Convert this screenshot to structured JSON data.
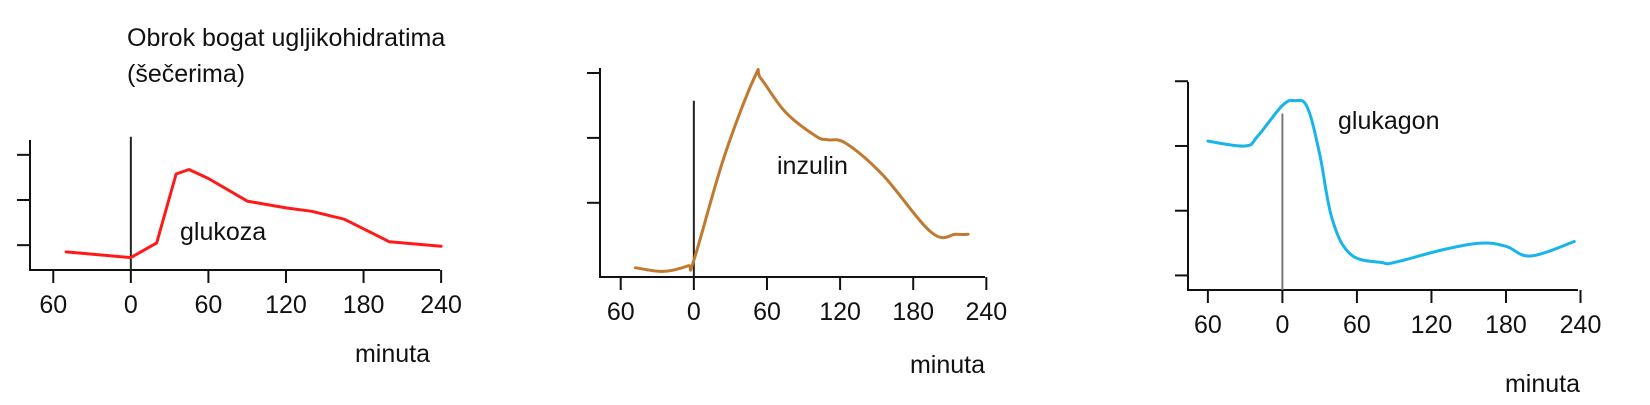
{
  "annotation": {
    "line1": "Obrok bogat ugljikohidratima",
    "line2": "(šečerima)"
  },
  "chart_data": [
    {
      "type": "line",
      "series": [
        {
          "name": "glukoza",
          "color": "#ff1a1a",
          "x": [
            -50,
            0,
            20,
            35,
            45,
            60,
            90,
            120,
            140,
            165,
            200,
            240
          ],
          "y": [
            1.4,
            0.9,
            2.2,
            8.3,
            8.7,
            7.9,
            5.9,
            5.3,
            5.0,
            4.3,
            2.3,
            1.9
          ]
        }
      ],
      "x_ticks": [
        {
          "value": -60,
          "label": "60"
        },
        {
          "value": 0,
          "label": "0"
        },
        {
          "value": 60,
          "label": "60"
        },
        {
          "value": 120,
          "label": "120"
        },
        {
          "value": 180,
          "label": "180"
        },
        {
          "value": 240,
          "label": "240"
        }
      ],
      "xlabel": "minuta",
      "xlim": [
        -78,
        243
      ],
      "ylim": [
        -0.2,
        12.2
      ],
      "y_ticks": [
        2,
        6,
        10
      ],
      "marker_x": 0,
      "marker_top": 11.6
    },
    {
      "type": "line",
      "series": [
        {
          "name": "inzulin",
          "color": "#c07a30",
          "x": [
            -48,
            -25,
            -5,
            0,
            25,
            50,
            55,
            75,
            100,
            110,
            125,
            155,
            195,
            215,
            225
          ],
          "y": [
            0.5,
            0.3,
            0.6,
            0.9,
            6.5,
            10.8,
            10.7,
            8.9,
            7.6,
            7.4,
            7.2,
            5.5,
            2.4,
            2.3,
            2.3
          ]
        }
      ],
      "x_ticks": [
        {
          "value": -60,
          "label": "60"
        },
        {
          "value": 0,
          "label": "0"
        },
        {
          "value": 60,
          "label": "60"
        },
        {
          "value": 120,
          "label": "120"
        },
        {
          "value": 180,
          "label": "180"
        },
        {
          "value": 240,
          "label": "240"
        }
      ],
      "xlabel": "minuta",
      "xlim": [
        -77,
        243
      ],
      "ylim": [
        0,
        11.7
      ],
      "y_ticks": [
        4,
        7.5,
        11
      ],
      "marker_x": 0,
      "marker_top": 9.5
    },
    {
      "type": "line",
      "series": [
        {
          "name": "glukagon",
          "color": "#19b4ea",
          "x": [
            -60,
            -30,
            -20,
            0,
            10,
            20,
            30,
            40,
            55,
            80,
            90,
            130,
            160,
            180,
            200,
            235
          ],
          "y": [
            8.8,
            8.5,
            9.1,
            11.0,
            11.3,
            10.9,
            8.0,
            4.0,
            1.8,
            1.3,
            1.3,
            2.1,
            2.5,
            2.3,
            1.7,
            2.6
          ]
        }
      ],
      "x_ticks": [
        {
          "value": -60,
          "label": "60"
        },
        {
          "value": 0,
          "label": "0"
        },
        {
          "value": 60,
          "label": "60"
        },
        {
          "value": 120,
          "label": "120"
        },
        {
          "value": 180,
          "label": "180"
        },
        {
          "value": 240,
          "label": "240"
        }
      ],
      "xlabel": "minuta",
      "xlim": [
        -76,
        242
      ],
      "ylim": [
        -0.4,
        12.7
      ],
      "y_ticks": [
        0.5,
        4.5,
        8.5,
        12.5
      ],
      "marker_x": 0,
      "marker_top": 10.5
    }
  ]
}
